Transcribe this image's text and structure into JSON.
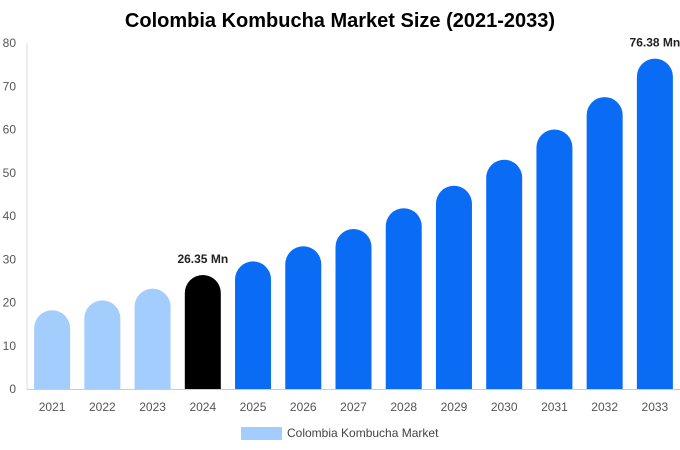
{
  "chart_data": {
    "type": "bar",
    "title": "Colombia Kombucha Market Size (2021-2033)",
    "categories": [
      "2021",
      "2022",
      "2023",
      "2024",
      "2025",
      "2026",
      "2027",
      "2028",
      "2029",
      "2030",
      "2031",
      "2032",
      "2033"
    ],
    "values": [
      18.2,
      20.5,
      23.2,
      26.35,
      29.5,
      33.0,
      37.0,
      41.8,
      47.0,
      53.0,
      60.0,
      67.5,
      76.38
    ],
    "bar_colors": [
      "#a3cdfd",
      "#a3cdfd",
      "#a3cdfd",
      "#000000",
      "#0a6cf5",
      "#0a6cf5",
      "#0a6cf5",
      "#0a6cf5",
      "#0a6cf5",
      "#0a6cf5",
      "#0a6cf5",
      "#0a6cf5",
      "#0a6cf5"
    ],
    "ylim": [
      0,
      80
    ],
    "yticks": [
      0,
      10,
      20,
      30,
      40,
      50,
      60,
      70,
      80
    ],
    "xlabel": "",
    "ylabel": "",
    "grid": false,
    "data_labels": [
      {
        "index": 3,
        "text": "26.35 Mn"
      },
      {
        "index": 12,
        "text": "76.38 Mn"
      }
    ],
    "legend": {
      "placement": "bottom-center",
      "entries": [
        {
          "name": "Colombia Kombucha Market",
          "color": "#a3cdfd"
        }
      ]
    }
  }
}
